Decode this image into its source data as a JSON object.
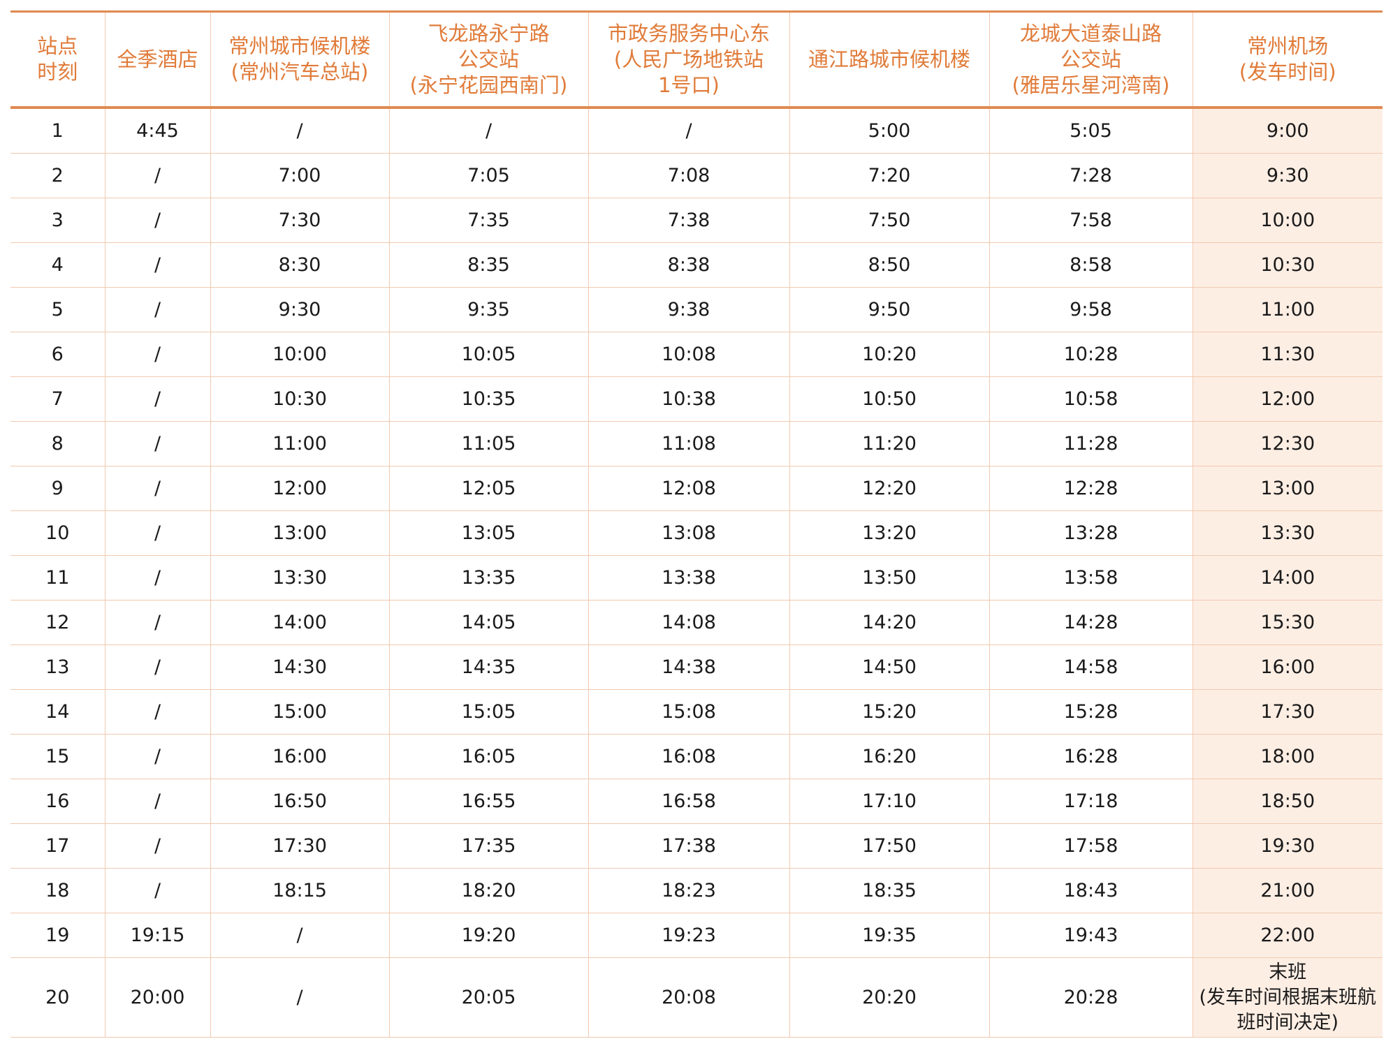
{
  "headers": [
    [
      "站点",
      "时刻"
    ],
    [
      "全季酒店"
    ],
    [
      "常州城市候机楼",
      "(常州汽车总站)"
    ],
    [
      "飞龙路永宁路",
      "公交站",
      "(永宁花园西南门)"
    ],
    [
      "市政务服务中心东",
      "(人民广场地铁站",
      "1号口)"
    ],
    [
      "通江路城市候机楼"
    ],
    [
      "龙城大道泰山路",
      "公交站",
      "(雅居乐星河湾南)"
    ],
    [
      "常州机场",
      "(发车时间)"
    ]
  ],
  "rows": [
    [
      "1",
      "4:45",
      "/",
      "/",
      "/",
      "5:00",
      "5:05",
      "9:00"
    ],
    [
      "2",
      "/",
      "7:00",
      "7:05",
      "7:08",
      "7:20",
      "7:28",
      "9:30"
    ],
    [
      "3",
      "/",
      "7:30",
      "7:35",
      "7:38",
      "7:50",
      "7:58",
      "10:00"
    ],
    [
      "4",
      "/",
      "8:30",
      "8:35",
      "8:38",
      "8:50",
      "8:58",
      "10:30"
    ],
    [
      "5",
      "/",
      "9:30",
      "9:35",
      "9:38",
      "9:50",
      "9:58",
      "11:00"
    ],
    [
      "6",
      "/",
      "10:00",
      "10:05",
      "10:08",
      "10:20",
      "10:28",
      "11:30"
    ],
    [
      "7",
      "/",
      "10:30",
      "10:35",
      "10:38",
      "10:50",
      "10:58",
      "12:00"
    ],
    [
      "8",
      "/",
      "11:00",
      "11:05",
      "11:08",
      "11:20",
      "11:28",
      "12:30"
    ],
    [
      "9",
      "/",
      "12:00",
      "12:05",
      "12:08",
      "12:20",
      "12:28",
      "13:00"
    ],
    [
      "10",
      "/",
      "13:00",
      "13:05",
      "13:08",
      "13:20",
      "13:28",
      "13:30"
    ],
    [
      "11",
      "/",
      "13:30",
      "13:35",
      "13:38",
      "13:50",
      "13:58",
      "14:00"
    ],
    [
      "12",
      "/",
      "14:00",
      "14:05",
      "14:08",
      "14:20",
      "14:28",
      "15:30"
    ],
    [
      "13",
      "/",
      "14:30",
      "14:35",
      "14:38",
      "14:50",
      "14:58",
      "16:00"
    ],
    [
      "14",
      "/",
      "15:00",
      "15:05",
      "15:08",
      "15:20",
      "15:28",
      "17:30"
    ],
    [
      "15",
      "/",
      "16:00",
      "16:05",
      "16:08",
      "16:20",
      "16:28",
      "18:00"
    ],
    [
      "16",
      "/",
      "16:50",
      "16:55",
      "16:58",
      "17:10",
      "17:18",
      "18:50"
    ],
    [
      "17",
      "/",
      "17:30",
      "17:35",
      "17:38",
      "17:50",
      "17:58",
      "19:30"
    ],
    [
      "18",
      "/",
      "18:15",
      "18:20",
      "18:23",
      "18:35",
      "18:43",
      "21:00"
    ],
    [
      "19",
      "19:15",
      "/",
      "19:20",
      "19:23",
      "19:35",
      "19:43",
      "22:00"
    ],
    [
      "20",
      "20:00",
      "/",
      "20:05",
      "20:08",
      "20:20",
      "20:28",
      "末班\n(发车时间根据末班航班时间决定)"
    ]
  ],
  "colors": {
    "header_text": "#e07b39",
    "rule": "#e08a50",
    "grid": "#f1c9b0",
    "airport_bg": "#fdeee4"
  }
}
